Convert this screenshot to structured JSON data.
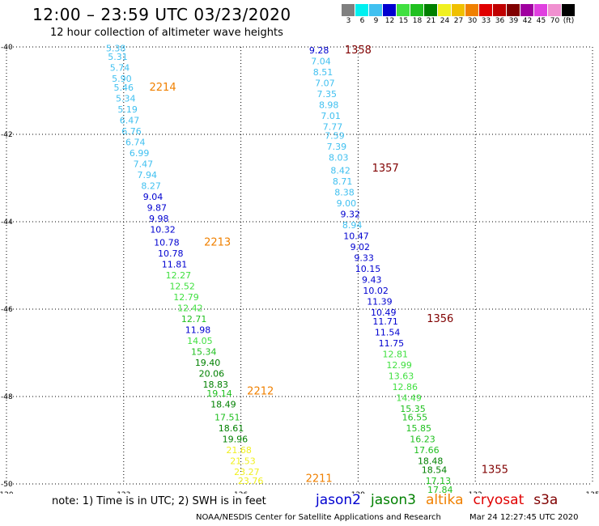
{
  "header": {
    "title": "12:00 – 23:59 UTC 03/23/2020",
    "subtitle": "12 hour collection of altimeter wave heights"
  },
  "legend": {
    "unit": "(ft)",
    "bins": [
      {
        "label": "3",
        "color": "#808080"
      },
      {
        "label": "6",
        "color": "#00f0f0"
      },
      {
        "label": "9",
        "color": "#40c0f0"
      },
      {
        "label": "12",
        "color": "#0000d0"
      },
      {
        "label": "15",
        "color": "#40e040"
      },
      {
        "label": "18",
        "color": "#20c020"
      },
      {
        "label": "21",
        "color": "#008000"
      },
      {
        "label": "24",
        "color": "#f0f020"
      },
      {
        "label": "27",
        "color": "#f0c000"
      },
      {
        "label": "30",
        "color": "#f08000"
      },
      {
        "label": "33",
        "color": "#e00000"
      },
      {
        "label": "36",
        "color": "#c00000"
      },
      {
        "label": "39",
        "color": "#800000"
      },
      {
        "label": "42",
        "color": "#a000a0"
      },
      {
        "label": "45",
        "color": "#e040e0"
      },
      {
        "label": "70",
        "color": "#f090d0"
      },
      {
        "label": "",
        "color": "#000000"
      }
    ]
  },
  "map": {
    "x_ticks": [
      "120",
      "123",
      "126",
      "129",
      "132",
      "135"
    ],
    "y_ticks": [
      "-40",
      "-42",
      "-44",
      "-46",
      "-48",
      "-50"
    ],
    "x_range": [
      120,
      135
    ],
    "y_range": [
      -50,
      -40
    ]
  },
  "tracks": [
    {
      "labels": [
        {
          "text": "2214",
          "lon": 124.0,
          "lat": -41.0,
          "color": "#f08000"
        },
        {
          "text": "2213",
          "lon": 125.4,
          "lat": -44.55,
          "color": "#f08000"
        },
        {
          "text": "2212",
          "lon": 126.5,
          "lat": -47.95,
          "color": "#f08000"
        },
        {
          "text": "2211",
          "lon": 128.0,
          "lat": -49.95,
          "color": "#f08000"
        }
      ],
      "points": [
        {
          "v": "5.38",
          "lon": 122.8,
          "lat": -40.1,
          "c": "#40c0f0"
        },
        {
          "v": "5.31",
          "lon": 122.85,
          "lat": -40.3,
          "c": "#40c0f0"
        },
        {
          "v": "5.74",
          "lon": 122.9,
          "lat": -40.55,
          "c": "#40c0f0"
        },
        {
          "v": "5.90",
          "lon": 122.95,
          "lat": -40.8,
          "c": "#40c0f0"
        },
        {
          "v": "5.46",
          "lon": 123.0,
          "lat": -41.0,
          "c": "#40c0f0"
        },
        {
          "v": "5.34",
          "lon": 123.05,
          "lat": -41.25,
          "c": "#40c0f0"
        },
        {
          "v": "5.19",
          "lon": 123.1,
          "lat": -41.5,
          "c": "#40c0f0"
        },
        {
          "v": "6.47",
          "lon": 123.15,
          "lat": -41.75,
          "c": "#40c0f0"
        },
        {
          "v": "6.76",
          "lon": 123.2,
          "lat": -42.0,
          "c": "#40c0f0"
        },
        {
          "v": "6.74",
          "lon": 123.3,
          "lat": -42.25,
          "c": "#40c0f0"
        },
        {
          "v": "6.99",
          "lon": 123.4,
          "lat": -42.5,
          "c": "#40c0f0"
        },
        {
          "v": "7.47",
          "lon": 123.5,
          "lat": -42.75,
          "c": "#40c0f0"
        },
        {
          "v": "7.94",
          "lon": 123.6,
          "lat": -43.0,
          "c": "#40c0f0"
        },
        {
          "v": "8.27",
          "lon": 123.7,
          "lat": -43.25,
          "c": "#40c0f0"
        },
        {
          "v": "9.04",
          "lon": 123.75,
          "lat": -43.5,
          "c": "#0000d0"
        },
        {
          "v": "9.87",
          "lon": 123.85,
          "lat": -43.75,
          "c": "#0000d0"
        },
        {
          "v": "9.98",
          "lon": 123.9,
          "lat": -44.0,
          "c": "#0000d0"
        },
        {
          "v": "10.32",
          "lon": 124.0,
          "lat": -44.25,
          "c": "#0000d0"
        },
        {
          "v": "10.78",
          "lon": 124.1,
          "lat": -44.55,
          "c": "#0000d0"
        },
        {
          "v": "10.78",
          "lon": 124.2,
          "lat": -44.8,
          "c": "#0000d0"
        },
        {
          "v": "11.81",
          "lon": 124.3,
          "lat": -45.05,
          "c": "#0000d0"
        },
        {
          "v": "12.27",
          "lon": 124.4,
          "lat": -45.3,
          "c": "#40e040"
        },
        {
          "v": "12.52",
          "lon": 124.5,
          "lat": -45.55,
          "c": "#40e040"
        },
        {
          "v": "12.79",
          "lon": 124.6,
          "lat": -45.8,
          "c": "#40e040"
        },
        {
          "v": "12.42",
          "lon": 124.7,
          "lat": -46.05,
          "c": "#40e040"
        },
        {
          "v": "12.71",
          "lon": 124.8,
          "lat": -46.3,
          "c": "#20c020"
        },
        {
          "v": "11.98",
          "lon": 124.9,
          "lat": -46.55,
          "c": "#0000d0"
        },
        {
          "v": "14.05",
          "lon": 124.95,
          "lat": -46.8,
          "c": "#40e040"
        },
        {
          "v": "15.34",
          "lon": 125.05,
          "lat": -47.05,
          "c": "#20c020"
        },
        {
          "v": "19.40",
          "lon": 125.15,
          "lat": -47.3,
          "c": "#008000"
        },
        {
          "v": "20.06",
          "lon": 125.25,
          "lat": -47.55,
          "c": "#008000"
        },
        {
          "v": "18.83",
          "lon": 125.35,
          "lat": -47.8,
          "c": "#008000"
        },
        {
          "v": "19.14",
          "lon": 125.45,
          "lat": -48.0,
          "c": "#20c020"
        },
        {
          "v": "18.49",
          "lon": 125.55,
          "lat": -48.25,
          "c": "#008000"
        },
        {
          "v": "17.51",
          "lon": 125.65,
          "lat": -48.55,
          "c": "#20c020"
        },
        {
          "v": "18.61",
          "lon": 125.75,
          "lat": -48.8,
          "c": "#008000"
        },
        {
          "v": "19.96",
          "lon": 125.85,
          "lat": -49.05,
          "c": "#008000"
        },
        {
          "v": "21.68",
          "lon": 125.95,
          "lat": -49.3,
          "c": "#f0f020"
        },
        {
          "v": "21.53",
          "lon": 126.05,
          "lat": -49.55,
          "c": "#f0f020"
        },
        {
          "v": "23.27",
          "lon": 126.15,
          "lat": -49.8,
          "c": "#f0f020"
        },
        {
          "v": "23.76",
          "lon": 126.25,
          "lat": -50.0,
          "c": "#f0f020"
        }
      ]
    },
    {
      "labels": [
        {
          "text": "1358",
          "lon": 129.0,
          "lat": -40.15,
          "color": "#800000"
        },
        {
          "text": "1357",
          "lon": 129.7,
          "lat": -42.85,
          "color": "#800000"
        },
        {
          "text": "1356",
          "lon": 131.1,
          "lat": -46.3,
          "color": "#800000"
        },
        {
          "text": "1355",
          "lon": 132.5,
          "lat": -49.75,
          "color": "#800000"
        }
      ],
      "points": [
        {
          "v": "9.28",
          "lon": 128.0,
          "lat": -40.15,
          "c": "#0000d0"
        },
        {
          "v": "7.04",
          "lon": 128.05,
          "lat": -40.4,
          "c": "#40c0f0"
        },
        {
          "v": "8.51",
          "lon": 128.1,
          "lat": -40.65,
          "c": "#40c0f0"
        },
        {
          "v": "7.07",
          "lon": 128.15,
          "lat": -40.9,
          "c": "#40c0f0"
        },
        {
          "v": "7.35",
          "lon": 128.2,
          "lat": -41.15,
          "c": "#40c0f0"
        },
        {
          "v": "8.98",
          "lon": 128.25,
          "lat": -41.4,
          "c": "#40c0f0"
        },
        {
          "v": "7.01",
          "lon": 128.3,
          "lat": -41.65,
          "c": "#40c0f0"
        },
        {
          "v": "7.77",
          "lon": 128.35,
          "lat": -41.9,
          "c": "#40c0f0"
        },
        {
          "v": "7.59",
          "lon": 128.4,
          "lat": -42.1,
          "c": "#40c0f0"
        },
        {
          "v": "7.39",
          "lon": 128.45,
          "lat": -42.35,
          "c": "#40c0f0"
        },
        {
          "v": "8.03",
          "lon": 128.5,
          "lat": -42.6,
          "c": "#40c0f0"
        },
        {
          "v": "8.42",
          "lon": 128.55,
          "lat": -42.9,
          "c": "#40c0f0"
        },
        {
          "v": "8.71",
          "lon": 128.6,
          "lat": -43.15,
          "c": "#40c0f0"
        },
        {
          "v": "8.38",
          "lon": 128.65,
          "lat": -43.4,
          "c": "#40c0f0"
        },
        {
          "v": "9.00",
          "lon": 128.7,
          "lat": -43.65,
          "c": "#40c0f0"
        },
        {
          "v": "9.32",
          "lon": 128.8,
          "lat": -43.9,
          "c": "#0000d0"
        },
        {
          "v": "8.94",
          "lon": 128.85,
          "lat": -44.15,
          "c": "#40c0f0"
        },
        {
          "v": "10.47",
          "lon": 128.95,
          "lat": -44.4,
          "c": "#0000d0"
        },
        {
          "v": "9.02",
          "lon": 129.05,
          "lat": -44.65,
          "c": "#0000d0"
        },
        {
          "v": "9.33",
          "lon": 129.15,
          "lat": -44.9,
          "c": "#0000d0"
        },
        {
          "v": "10.15",
          "lon": 129.25,
          "lat": -45.15,
          "c": "#0000d0"
        },
        {
          "v": "9.43",
          "lon": 129.35,
          "lat": -45.4,
          "c": "#0000d0"
        },
        {
          "v": "10.02",
          "lon": 129.45,
          "lat": -45.65,
          "c": "#0000d0"
        },
        {
          "v": "11.39",
          "lon": 129.55,
          "lat": -45.9,
          "c": "#0000d0"
        },
        {
          "v": "10.49",
          "lon": 129.65,
          "lat": -46.15,
          "c": "#0000d0"
        },
        {
          "v": "11.71",
          "lon": 129.7,
          "lat": -46.35,
          "c": "#0000d0"
        },
        {
          "v": "11.54",
          "lon": 129.75,
          "lat": -46.6,
          "c": "#0000d0"
        },
        {
          "v": "11.75",
          "lon": 129.85,
          "lat": -46.85,
          "c": "#0000d0"
        },
        {
          "v": "12.81",
          "lon": 129.95,
          "lat": -47.1,
          "c": "#40e040"
        },
        {
          "v": "12.99",
          "lon": 130.05,
          "lat": -47.35,
          "c": "#40e040"
        },
        {
          "v": "13.63",
          "lon": 130.1,
          "lat": -47.6,
          "c": "#40e040"
        },
        {
          "v": "12.86",
          "lon": 130.2,
          "lat": -47.85,
          "c": "#40e040"
        },
        {
          "v": "14.49",
          "lon": 130.3,
          "lat": -48.1,
          "c": "#40e040"
        },
        {
          "v": "15.35",
          "lon": 130.4,
          "lat": -48.35,
          "c": "#20c020"
        },
        {
          "v": "16.55",
          "lon": 130.45,
          "lat": -48.55,
          "c": "#20c020"
        },
        {
          "v": "15.85",
          "lon": 130.55,
          "lat": -48.8,
          "c": "#20c020"
        },
        {
          "v": "16.23",
          "lon": 130.65,
          "lat": -49.05,
          "c": "#20c020"
        },
        {
          "v": "17.66",
          "lon": 130.75,
          "lat": -49.3,
          "c": "#20c020"
        },
        {
          "v": "18.48",
          "lon": 130.85,
          "lat": -49.55,
          "c": "#008000"
        },
        {
          "v": "18.54",
          "lon": 130.95,
          "lat": -49.75,
          "c": "#008000"
        },
        {
          "v": "17.13",
          "lon": 131.05,
          "lat": -50.0,
          "c": "#20c020"
        },
        {
          "v": "17.84",
          "lon": 131.1,
          "lat": -50.2,
          "c": "#20c020"
        },
        {
          "v": "17.92",
          "lon": 131.2,
          "lat": -50.45,
          "c": "#20c020"
        }
      ]
    }
  ],
  "footer": {
    "note": "note:  1) Time is in UTC;  2) SWH is in feet",
    "satellites": [
      {
        "name": "jason2",
        "color": "#0000d0"
      },
      {
        "name": "jason3",
        "color": "#008000"
      },
      {
        "name": "altika",
        "color": "#f08000"
      },
      {
        "name": "cryosat",
        "color": "#e00000"
      },
      {
        "name": "s3a",
        "color": "#800000"
      }
    ],
    "credit": "NOAA/NESDIS Center for Satellite Applications and Research",
    "timestamp": "Mar 24 12:27:45 UTC 2020"
  }
}
